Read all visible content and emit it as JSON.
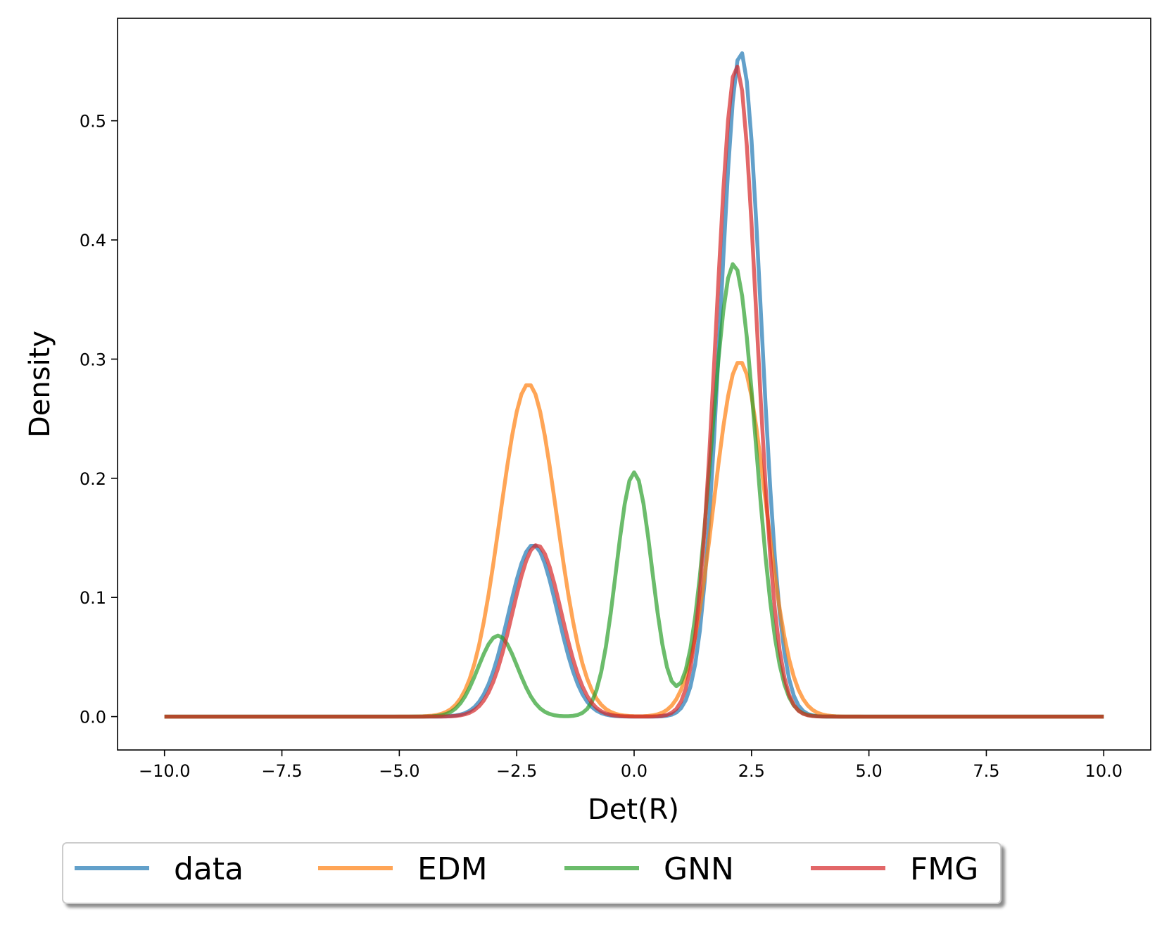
{
  "chart_data": {
    "type": "line",
    "title": "",
    "xlabel": "Det(R)",
    "ylabel": "Density",
    "xlim": [
      -11,
      11
    ],
    "ylim": [
      -0.028,
      0.586
    ],
    "grid": false,
    "legend_placement": "bottom-center",
    "x_ticks": [
      -10.0,
      -7.5,
      -5.0,
      -2.5,
      0.0,
      2.5,
      5.0,
      7.5,
      10.0
    ],
    "x_tick_labels": [
      "−10.0",
      "−7.5",
      "−5.0",
      "−2.5",
      "0.0",
      "2.5",
      "5.0",
      "7.5",
      "10.0"
    ],
    "y_ticks": [
      0.0,
      0.1,
      0.2,
      0.3,
      0.4,
      0.5
    ],
    "y_tick_labels": [
      "0.0",
      "0.1",
      "0.2",
      "0.3",
      "0.4",
      "0.5"
    ],
    "x_range": [
      -10,
      10
    ],
    "series": [
      {
        "name": "data",
        "color": "#1f77b4",
        "components": [
          {
            "mean": -2.15,
            "sd": 0.52,
            "peak": 0.144
          },
          {
            "mean": 2.27,
            "sd": 0.43,
            "peak": 0.558
          }
        ]
      },
      {
        "name": "EDM",
        "color": "#ff7f0e",
        "components": [
          {
            "mean": -2.25,
            "sd": 0.6,
            "peak": 0.279
          },
          {
            "mean": 2.25,
            "sd": 0.55,
            "peak": 0.298
          }
        ]
      },
      {
        "name": "GNN",
        "color": "#2ca02c",
        "components": [
          {
            "mean": -2.9,
            "sd": 0.42,
            "peak": 0.068
          },
          {
            "mean": 0.0,
            "sd": 0.38,
            "peak": 0.205
          },
          {
            "mean": 2.12,
            "sd": 0.47,
            "peak": 0.38
          }
        ]
      },
      {
        "name": "FMG",
        "color": "#d62728",
        "components": [
          {
            "mean": -2.07,
            "sd": 0.52,
            "peak": 0.144
          },
          {
            "mean": 2.18,
            "sd": 0.43,
            "peak": 0.546
          }
        ]
      }
    ]
  }
}
